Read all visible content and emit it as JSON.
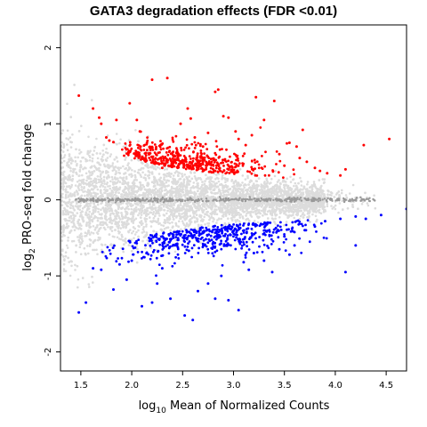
{
  "chart_data": {
    "type": "scatter",
    "title": "GATA3 degradation effects (FDR <0.01)",
    "xlabel": {
      "prefix": "log",
      "sub": "10",
      "rest": " Mean of Normalized Counts"
    },
    "ylabel": {
      "prefix": "log",
      "sub": "2",
      "rest": " PRO-seq fold change"
    },
    "xlim": [
      1.3,
      4.7
    ],
    "ylim": [
      -2.25,
      2.3
    ],
    "x_ticks": [
      1.5,
      2.0,
      2.5,
      3.0,
      3.5,
      4.0,
      4.5
    ],
    "x_tick_labels": [
      "1.5",
      "2.0",
      "2.5",
      "3.0",
      "3.5",
      "4.0",
      "4.5"
    ],
    "y_ticks": [
      2,
      1,
      0,
      -1,
      -2
    ],
    "y_tick_labels": [
      "2",
      "1",
      "0",
      "-1",
      "-2"
    ],
    "grid": false,
    "series": [
      {
        "color": "#dcdcdc",
        "role": "not significant (cloud)"
      },
      {
        "color": "#999999",
        "role": "near-zero band"
      },
      {
        "color": "#ff0000",
        "role": "significantly up"
      },
      {
        "color": "#0000ff",
        "role": "significantly down"
      }
    ],
    "significant_up_points": [
      [
        1.48,
        1.37
      ],
      [
        1.62,
        1.2
      ],
      [
        1.68,
        1.08
      ],
      [
        1.7,
        1.0
      ],
      [
        1.75,
        0.82
      ],
      [
        1.78,
        0.78
      ],
      [
        1.82,
        0.76
      ],
      [
        1.85,
        1.05
      ],
      [
        1.98,
        1.27
      ],
      [
        2.05,
        1.05
      ],
      [
        2.08,
        0.9
      ],
      [
        2.15,
        0.75
      ],
      [
        2.18,
        0.68
      ],
      [
        2.2,
        1.58
      ],
      [
        2.35,
        1.6
      ],
      [
        2.4,
        0.62
      ],
      [
        2.45,
        0.55
      ],
      [
        2.48,
        1.0
      ],
      [
        2.55,
        1.2
      ],
      [
        2.58,
        1.07
      ],
      [
        2.62,
        0.82
      ],
      [
        2.7,
        0.7
      ],
      [
        2.75,
        0.88
      ],
      [
        2.82,
        1.42
      ],
      [
        2.85,
        1.45
      ],
      [
        2.9,
        1.1
      ],
      [
        2.95,
        1.08
      ],
      [
        3.02,
        0.9
      ],
      [
        3.05,
        0.8
      ],
      [
        3.12,
        0.72
      ],
      [
        3.18,
        0.85
      ],
      [
        3.22,
        1.35
      ],
      [
        3.3,
        1.05
      ],
      [
        3.4,
        1.3
      ],
      [
        3.45,
        0.6
      ],
      [
        3.55,
        0.75
      ],
      [
        3.62,
        0.7
      ],
      [
        3.68,
        0.92
      ],
      [
        3.72,
        0.5
      ],
      [
        3.8,
        0.42
      ],
      [
        3.85,
        0.38
      ],
      [
        3.92,
        0.35
      ],
      [
        4.05,
        0.32
      ],
      [
        4.1,
        0.4
      ],
      [
        4.28,
        0.72
      ],
      [
        4.53,
        0.8
      ],
      [
        3.65,
        0.55
      ],
      [
        3.5,
        0.45
      ],
      [
        2.3,
        0.42
      ],
      [
        2.1,
        0.55
      ]
    ],
    "significant_down_points": [
      [
        1.48,
        -1.48
      ],
      [
        1.55,
        -1.35
      ],
      [
        1.62,
        -0.9
      ],
      [
        1.7,
        -0.92
      ],
      [
        1.82,
        -1.18
      ],
      [
        1.88,
        -0.85
      ],
      [
        1.95,
        -1.05
      ],
      [
        2.0,
        -0.8
      ],
      [
        2.1,
        -1.4
      ],
      [
        2.2,
        -1.35
      ],
      [
        2.25,
        -1.1
      ],
      [
        2.3,
        -0.9
      ],
      [
        2.38,
        -1.3
      ],
      [
        2.52,
        -1.52
      ],
      [
        2.6,
        -1.58
      ],
      [
        2.65,
        -1.2
      ],
      [
        2.75,
        -1.1
      ],
      [
        2.82,
        -1.3
      ],
      [
        2.88,
        -1.0
      ],
      [
        2.95,
        -1.32
      ],
      [
        3.05,
        -1.45
      ],
      [
        3.1,
        -0.82
      ],
      [
        3.15,
        -0.92
      ],
      [
        3.2,
        -0.7
      ],
      [
        3.3,
        -0.8
      ],
      [
        3.38,
        -0.95
      ],
      [
        3.45,
        -0.65
      ],
      [
        3.55,
        -0.72
      ],
      [
        3.6,
        -0.6
      ],
      [
        3.7,
        -0.4
      ],
      [
        3.8,
        -0.35
      ],
      [
        3.9,
        -0.28
      ],
      [
        4.05,
        -0.25
      ],
      [
        4.2,
        -0.22
      ],
      [
        4.3,
        -0.25
      ],
      [
        4.45,
        -0.2
      ],
      [
        4.7,
        -0.12
      ],
      [
        4.1,
        -0.95
      ],
      [
        4.2,
        -0.6
      ],
      [
        3.5,
        -0.48
      ]
    ]
  }
}
